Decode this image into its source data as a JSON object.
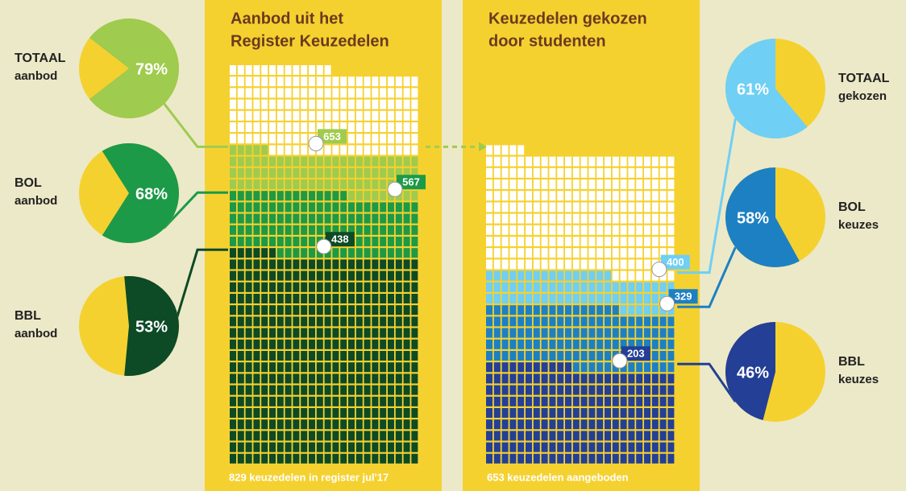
{
  "chart_data": [
    {
      "type": "waffle",
      "title": [
        "Aanbod uit het",
        "Register Keuzedelen"
      ],
      "total": 829,
      "footer": "829 keuzedelen in register jul'17",
      "levels": [
        {
          "name": "TOTAAL",
          "sublabel": "aanbod",
          "value": 653,
          "share": 79,
          "share_label": "79%",
          "color": "#9fcb4e"
        },
        {
          "name": "BOL",
          "sublabel": "aanbod",
          "value": 567,
          "share": 68,
          "share_label": "68%",
          "color": "#1c9a47"
        },
        {
          "name": "BBL",
          "sublabel": "aanbod",
          "value": 438,
          "share": 53,
          "share_label": "53%",
          "color": "#0d4a26"
        }
      ]
    },
    {
      "type": "waffle",
      "title": [
        "Keuzedelen gekozen",
        "door studenten"
      ],
      "total": 653,
      "footer": "653 keuzedelen aangeboden",
      "levels": [
        {
          "name": "TOTAAL",
          "sublabel": "gekozen",
          "value": 400,
          "share": 61,
          "share_label": "61%",
          "color": "#6fcff4"
        },
        {
          "name": "BOL",
          "sublabel": "keuzes",
          "value": 329,
          "share": 58,
          "share_label": "58%",
          "color": "#1d80c3"
        },
        {
          "name": "BBL",
          "sublabel": "keuzes",
          "value": 203,
          "share": 46,
          "share_label": "46%",
          "color": "#233f96"
        }
      ]
    }
  ]
}
